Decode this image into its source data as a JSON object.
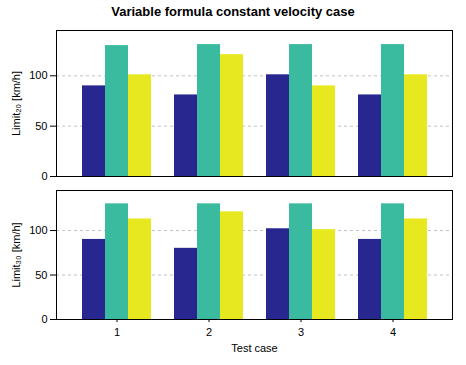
{
  "chart_data": [
    {
      "type": "bar",
      "title": "Variable formula constant velocity case",
      "ylabel": "Limit₂₀ [km/h]",
      "categories": [
        "1",
        "2",
        "3",
        "4"
      ],
      "series": [
        {
          "color": "#27278f",
          "values": [
            90,
            81,
            101,
            81
          ]
        },
        {
          "color": "#3abba0",
          "values": [
            130,
            131,
            131,
            131
          ]
        },
        {
          "color": "#e8e820",
          "values": [
            101,
            121,
            90,
            101
          ]
        }
      ],
      "ylim": [
        0,
        145
      ],
      "yticks": [
        0,
        50,
        100
      ],
      "grid": true,
      "tick_labels": "y"
    },
    {
      "type": "bar",
      "xlabel": "Test case",
      "ylabel": "Limit₃₀ [km/h]",
      "categories": [
        "1",
        "2",
        "3",
        "4"
      ],
      "series": [
        {
          "color": "#27278f",
          "values": [
            90,
            80,
            102,
            90
          ]
        },
        {
          "color": "#3abba0",
          "values": [
            130,
            130,
            130,
            130
          ]
        },
        {
          "color": "#e8e820",
          "values": [
            113,
            121,
            101,
            113
          ]
        }
      ],
      "ylim": [
        0,
        145
      ],
      "yticks": [
        0,
        50,
        100
      ],
      "grid": true
    }
  ]
}
